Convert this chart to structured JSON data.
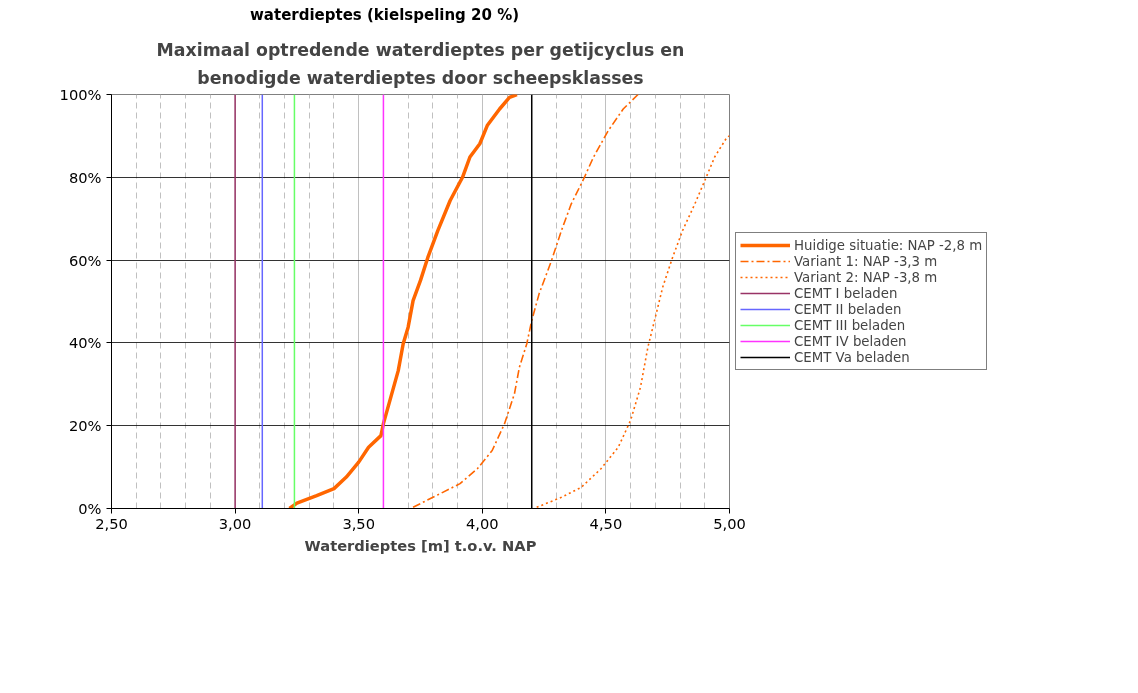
{
  "chart_data": {
    "type": "line",
    "title": "Maximaal optredende waterdieptes per getijcyclus en benodigde waterdieptes door scheepsklasses",
    "xlabel": "Waterdieptes [m] t.o.v. NAP",
    "annotations": [
      "waterdieptes (kielspeling 20 %)"
    ],
    "xlim": [
      2.5,
      5.0
    ],
    "xticks": [
      {
        "value": 2.5,
        "label": "2,50"
      },
      {
        "value": 3.0,
        "label": "3,00"
      },
      {
        "value": 3.5,
        "label": "3,50"
      },
      {
        "value": 4.0,
        "label": "4,00"
      },
      {
        "value": 4.5,
        "label": "4,50"
      },
      {
        "value": 5.0,
        "label": "5,00"
      }
    ],
    "ylim": [
      0,
      100
    ],
    "yticks": [
      {
        "value": 0,
        "label": "0%"
      },
      {
        "value": 20,
        "label": "20%"
      },
      {
        "value": 40,
        "label": "40%"
      },
      {
        "value": 60,
        "label": "60%"
      },
      {
        "value": 80,
        "label": "80%"
      },
      {
        "value": 100,
        "label": "100%"
      }
    ],
    "grid": true,
    "legend": "right",
    "series": [
      {
        "name": "Huidige situatie: NAP -2,8 m",
        "color": "#ff6600",
        "line_style": "solid",
        "x": [
          3.22,
          3.25,
          3.33,
          3.4,
          3.45,
          3.5,
          3.54,
          3.59,
          3.6,
          3.63,
          3.66,
          3.68,
          3.7,
          3.72,
          3.75,
          3.78,
          3.82,
          3.87,
          3.92,
          3.95,
          3.99,
          4.02,
          4.07,
          4.11,
          4.14
        ],
        "values": [
          0,
          1.3,
          3.1,
          4.8,
          7.6,
          11.2,
          14.8,
          17.6,
          20.5,
          26.9,
          33.3,
          39.8,
          43.8,
          50.2,
          55.1,
          60.7,
          67.1,
          74.4,
          80.0,
          84.9,
          88.1,
          92.5,
          96.5,
          99.3,
          100
        ]
      },
      {
        "name": "Variant 1: NAP -3,3 m",
        "color": "#ff6600",
        "line_style": "dashed",
        "x": [
          3.72,
          3.84,
          3.91,
          3.98,
          4.04,
          4.09,
          4.13,
          4.15,
          4.18,
          4.2,
          4.23,
          4.28,
          4.32,
          4.36,
          4.41,
          4.45,
          4.51,
          4.57,
          4.63
        ],
        "values": [
          0.3,
          3.9,
          6.0,
          9.6,
          14.0,
          20.5,
          27.7,
          34.1,
          39.8,
          45.4,
          51.9,
          59.9,
          67.1,
          73.6,
          79.6,
          84.9,
          91.3,
          96.5,
          100
        ]
      },
      {
        "name": "Variant 2: NAP -3,8 m",
        "color": "#ff6600",
        "line_style": "dotted",
        "x": [
          4.22,
          4.32,
          4.4,
          4.48,
          4.55,
          4.6,
          4.64,
          4.67,
          4.7,
          4.73,
          4.77,
          4.81,
          4.86,
          4.9,
          4.94,
          4.99,
          5.0
        ],
        "values": [
          0.3,
          2.7,
          5.1,
          9.6,
          14.8,
          21.3,
          29.3,
          39.0,
          46.2,
          53.5,
          60.7,
          67.1,
          73.6,
          79.2,
          84.9,
          89.7,
          90
        ]
      },
      {
        "name": "CEMT I beladen",
        "color": "#993366",
        "line_style": "solid",
        "x": [
          3.0,
          3.0
        ],
        "values": [
          0,
          100
        ]
      },
      {
        "name": "CEMT II beladen",
        "color": "#6666ff",
        "line_style": "solid",
        "x": [
          3.11,
          3.11
        ],
        "values": [
          0,
          100
        ]
      },
      {
        "name": "CEMT III beladen",
        "color": "#66ff66",
        "line_style": "solid",
        "x": [
          3.24,
          3.24
        ],
        "values": [
          0,
          100
        ]
      },
      {
        "name": "CEMT IV beladen",
        "color": "#ff33ff",
        "line_style": "solid",
        "x": [
          3.6,
          3.6
        ],
        "values": [
          0,
          100
        ]
      },
      {
        "name": "CEMT Va beladen",
        "color": "#000000",
        "line_style": "solid",
        "x": [
          4.2,
          4.2
        ],
        "values": [
          0,
          100
        ]
      }
    ]
  }
}
